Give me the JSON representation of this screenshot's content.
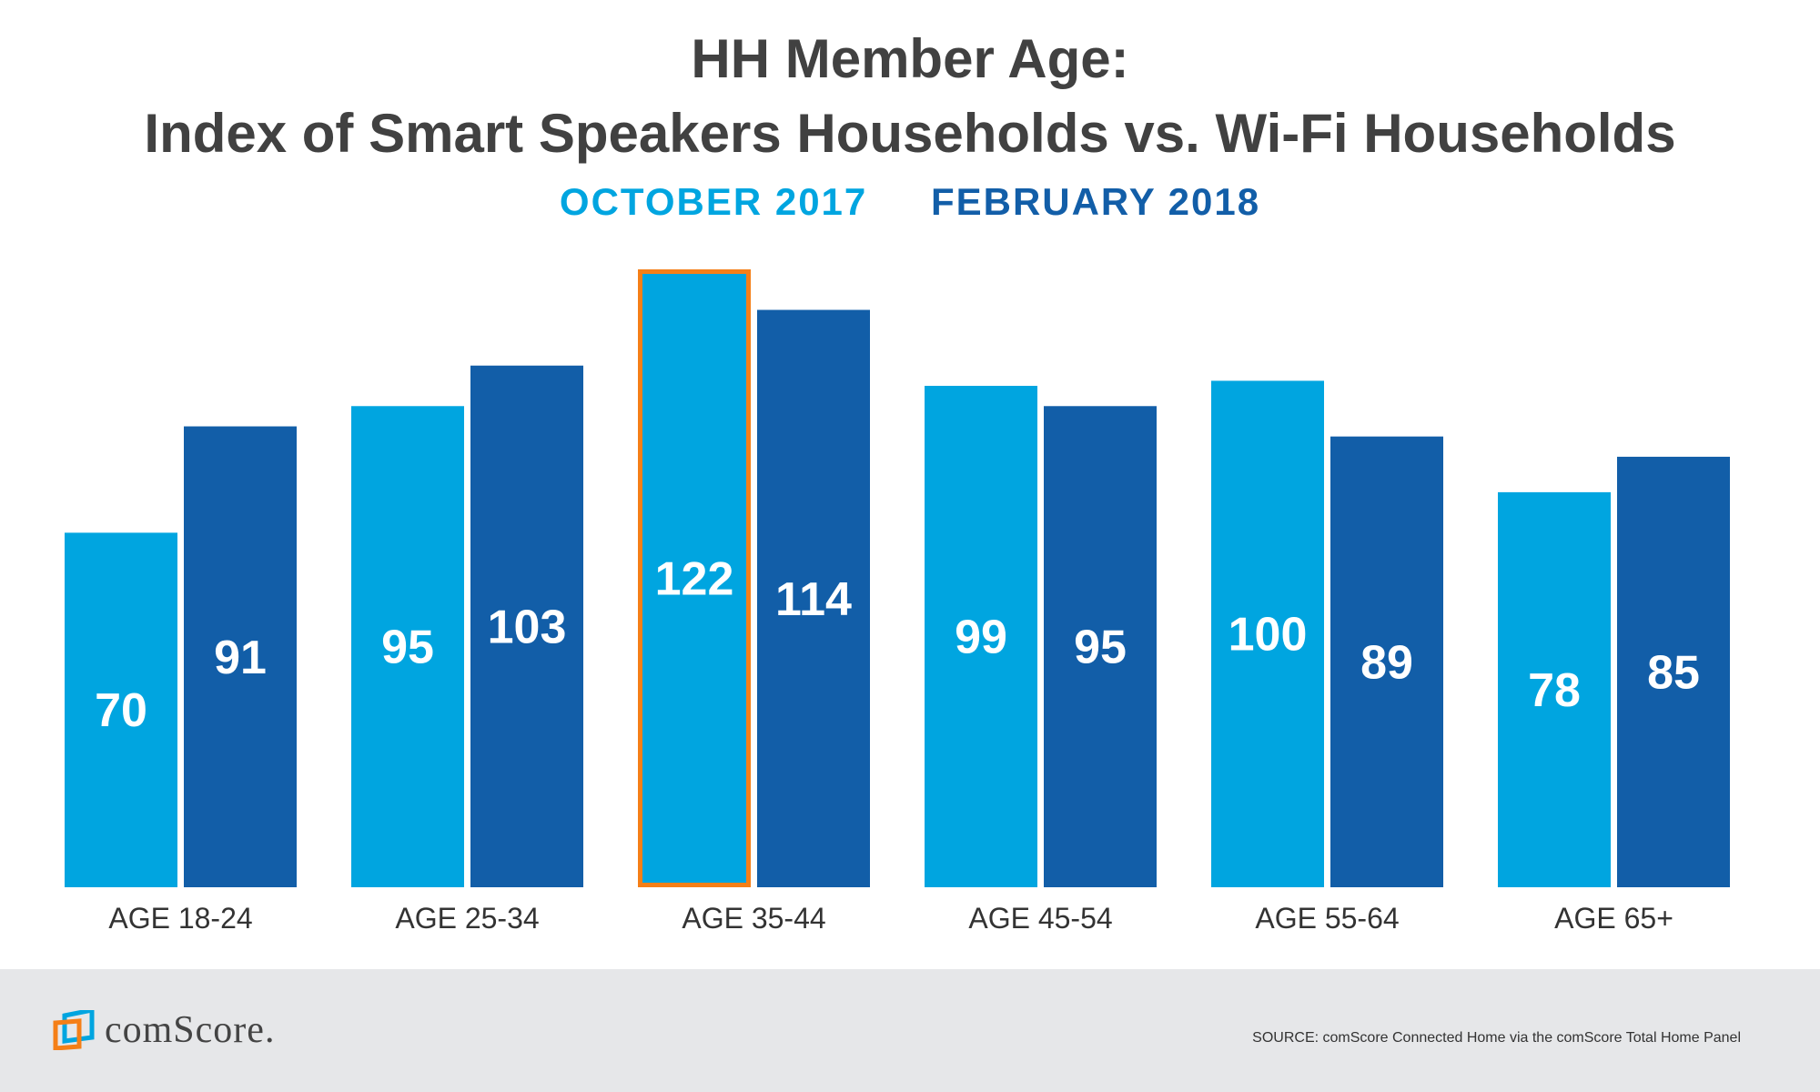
{
  "chart_data": {
    "type": "bar",
    "title": "HH Member Age:",
    "subtitle": "Index of Smart Speakers Households vs. Wi-Fi Households",
    "categories": [
      "AGE 18-24",
      "AGE 25-34",
      "AGE 35-44",
      "AGE 45-54",
      "AGE 55-64",
      "AGE 65+"
    ],
    "series": [
      {
        "name": "OCTOBER 2017",
        "color": "#00a5e0",
        "values": [
          70,
          95,
          122,
          99,
          100,
          78
        ]
      },
      {
        "name": "FEBRUARY 2018",
        "color": "#125ea8",
        "values": [
          91,
          103,
          114,
          95,
          89,
          85
        ]
      }
    ],
    "highlight": {
      "series": 0,
      "category": 2,
      "color": "#f57f17"
    },
    "ylim": [
      0,
      122
    ],
    "grid": false,
    "legend_placement": "top-center",
    "xlabel": "",
    "ylabel": ""
  },
  "footer": {
    "logo": "comScore.",
    "source": "SOURCE: comScore Connected Home via the comScore Total Home Panel"
  }
}
